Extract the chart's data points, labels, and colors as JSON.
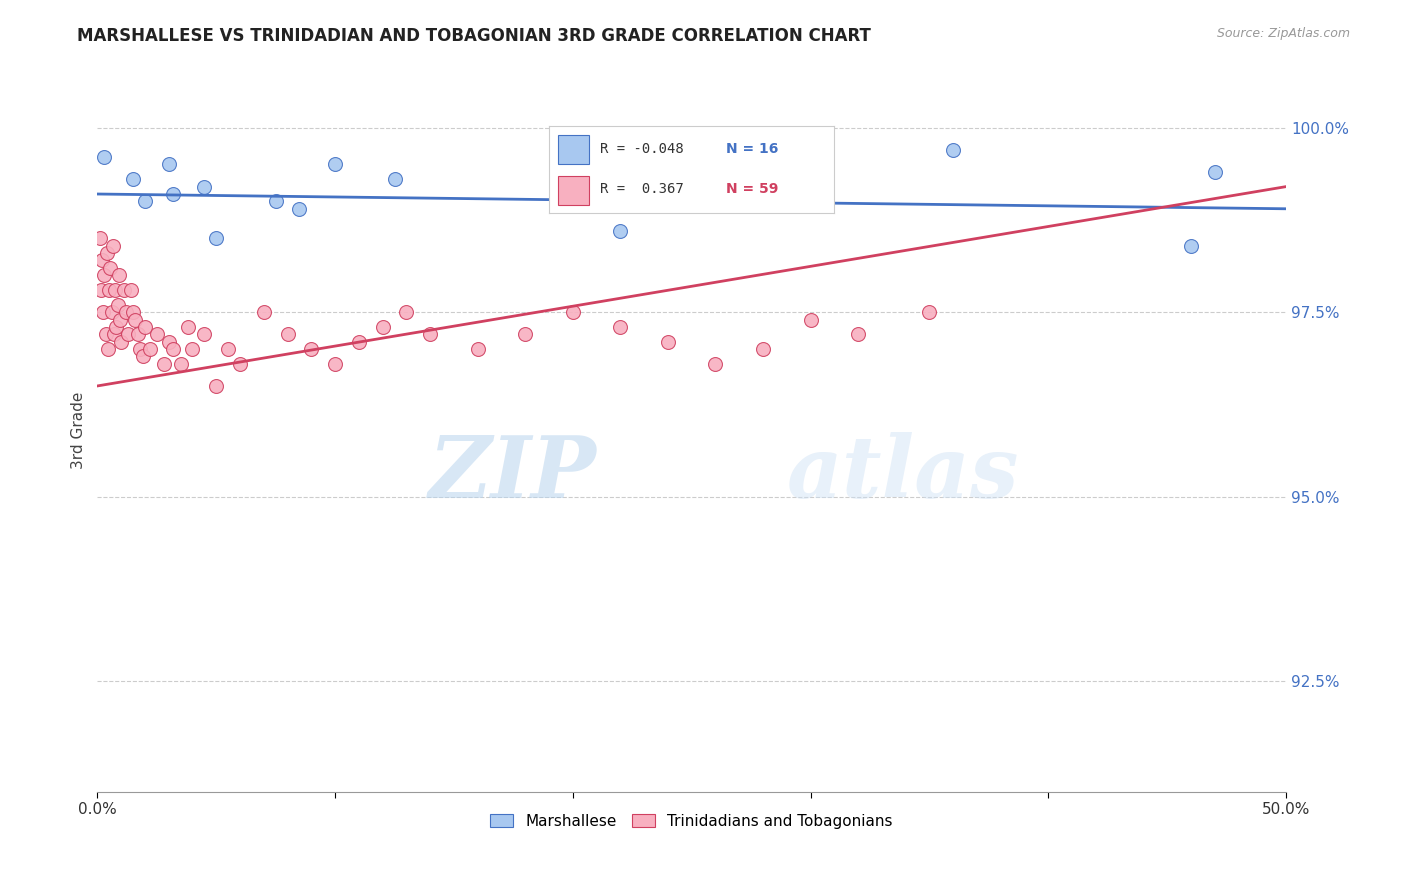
{
  "title": "MARSHALLESE VS TRINIDADIAN AND TOBAGONIAN 3RD GRADE CORRELATION CHART",
  "source": "Source: ZipAtlas.com",
  "ylabel": "3rd Grade",
  "x_min": 0.0,
  "x_max": 50.0,
  "y_min": 91.0,
  "y_max": 100.8,
  "x_ticks": [
    0.0,
    10.0,
    20.0,
    30.0,
    40.0,
    50.0
  ],
  "x_tick_labels": [
    "0.0%",
    "",
    "",
    "",
    "",
    "50.0%"
  ],
  "y_ticks": [
    92.5,
    95.0,
    97.5,
    100.0
  ],
  "y_tick_labels": [
    "92.5%",
    "95.0%",
    "97.5%",
    "100.0%"
  ],
  "marshallese_color": "#a8c8f0",
  "trinidadian_color": "#f8b0c0",
  "marshallese_line_color": "#4472c4",
  "trinidadian_line_color": "#d04060",
  "R_marshallese": -0.048,
  "N_marshallese": 16,
  "R_trinidadian": 0.367,
  "N_trinidadian": 59,
  "watermark_zip": "ZIP",
  "watermark_atlas": "atlas",
  "marshallese_scatter_x": [
    0.3,
    1.5,
    2.0,
    3.0,
    3.2,
    4.5,
    5.0,
    7.5,
    8.5,
    10.0,
    12.5,
    20.0,
    22.0,
    36.0,
    46.0,
    47.0
  ],
  "marshallese_scatter_y": [
    99.6,
    99.3,
    99.0,
    99.5,
    99.1,
    99.2,
    98.5,
    99.0,
    98.9,
    99.5,
    99.3,
    99.2,
    98.6,
    99.7,
    98.4,
    99.4
  ],
  "trinidadian_scatter_x": [
    0.1,
    0.15,
    0.2,
    0.25,
    0.3,
    0.35,
    0.4,
    0.45,
    0.5,
    0.55,
    0.6,
    0.65,
    0.7,
    0.75,
    0.8,
    0.85,
    0.9,
    0.95,
    1.0,
    1.1,
    1.2,
    1.3,
    1.4,
    1.5,
    1.6,
    1.7,
    1.8,
    1.9,
    2.0,
    2.2,
    2.5,
    2.8,
    3.0,
    3.2,
    3.5,
    3.8,
    4.0,
    4.5,
    5.0,
    5.5,
    6.0,
    7.0,
    8.0,
    9.0,
    10.0,
    11.0,
    12.0,
    13.0,
    14.0,
    16.0,
    18.0,
    20.0,
    22.0,
    24.0,
    26.0,
    28.0,
    30.0,
    32.0,
    35.0
  ],
  "trinidadian_scatter_y": [
    98.5,
    97.8,
    98.2,
    97.5,
    98.0,
    97.2,
    98.3,
    97.0,
    97.8,
    98.1,
    97.5,
    98.4,
    97.2,
    97.8,
    97.3,
    97.6,
    98.0,
    97.4,
    97.1,
    97.8,
    97.5,
    97.2,
    97.8,
    97.5,
    97.4,
    97.2,
    97.0,
    96.9,
    97.3,
    97.0,
    97.2,
    96.8,
    97.1,
    97.0,
    96.8,
    97.3,
    97.0,
    97.2,
    96.5,
    97.0,
    96.8,
    97.5,
    97.2,
    97.0,
    96.8,
    97.1,
    97.3,
    97.5,
    97.2,
    97.0,
    97.2,
    97.5,
    97.3,
    97.1,
    96.8,
    97.0,
    97.4,
    97.2,
    97.5
  ]
}
